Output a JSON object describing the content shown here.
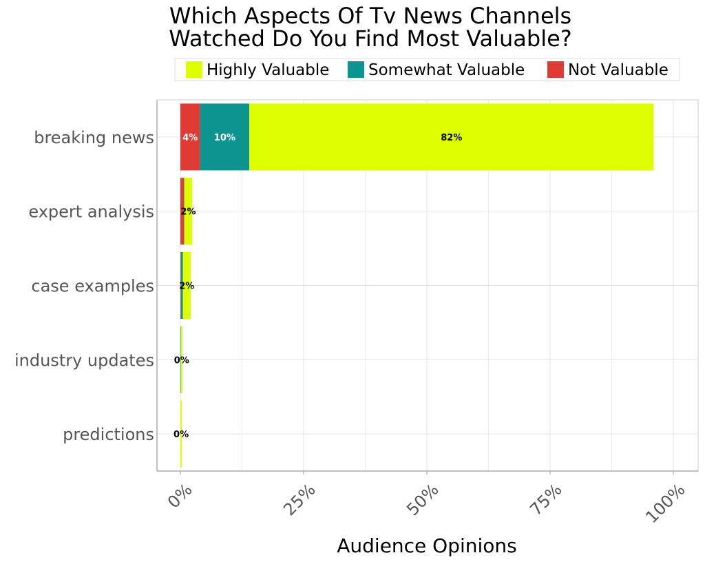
{
  "chart_data": {
    "type": "bar",
    "orientation": "horizontal",
    "stacked": true,
    "title_lines": [
      "Which Aspects Of Tv News Channels",
      "Watched Do You Find Most Valuable?"
    ],
    "xlabel": "Audience Opinions",
    "ylabel": "",
    "xlim": [
      0,
      100
    ],
    "x_ticks": [
      0,
      25,
      50,
      75,
      100
    ],
    "x_tick_labels": [
      "0%",
      "25%",
      "50%",
      "75%",
      "100%"
    ],
    "grid": true,
    "legend_position": "top",
    "categories": [
      "breaking news",
      "expert analysis",
      "case examples",
      "industry updates",
      "predictions"
    ],
    "series": [
      {
        "name": "Not Valuable",
        "color": "#e03a35",
        "text_color": "#ffffff",
        "values": [
          4,
          0.7,
          0.1,
          0,
          0
        ],
        "labels": [
          "4%",
          "",
          "",
          "",
          ""
        ]
      },
      {
        "name": "Somewhat Valuable",
        "color": "#0b9490",
        "text_color": "#ffffff",
        "values": [
          10,
          0.1,
          0.4,
          0.1,
          0
        ],
        "labels": [
          "10%",
          "",
          "",
          "",
          ""
        ]
      },
      {
        "name": "Highly Valuable",
        "color": "#deff00",
        "text_color": "#000000",
        "values": [
          82,
          1.6,
          1.6,
          0.3,
          0.3
        ],
        "labels": [
          "82%",
          "2%",
          "2%",
          "0%",
          "0%"
        ]
      }
    ],
    "legend_order": [
      "Highly Valuable",
      "Somewhat Valuable",
      "Not Valuable"
    ]
  }
}
